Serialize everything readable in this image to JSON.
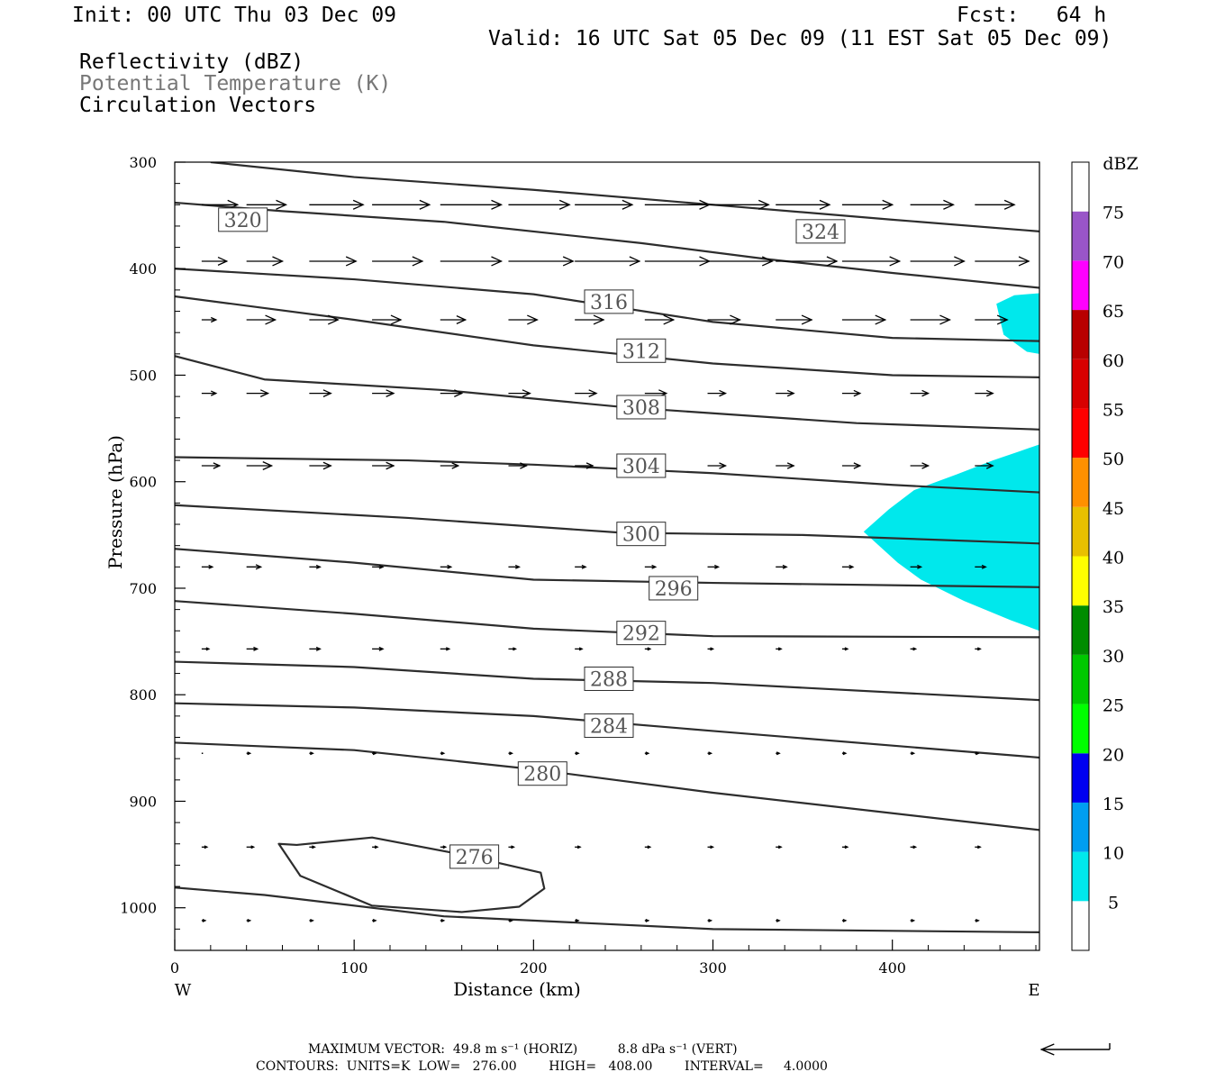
{
  "header": {
    "init": "Init: 00 UTC Thu 03 Dec 09",
    "fcst": "Fcst:   64 h",
    "valid": "Valid: 16 UTC Sat 05 Dec 09 (11 EST Sat 05 Dec 09)",
    "field1": "Reflectivity (dBZ)",
    "field2": "Potential Temperature (K)",
    "field3": "Circulation Vectors"
  },
  "footer": {
    "line1": "MAXIMUM VECTOR:  49.8 m s⁻¹ (HORIZ)          8.8 dPa s⁻¹ (VERT)",
    "line2": "CONTOURS:  UNITS=K  LOW=   276.00        HIGH=   408.00        INTERVAL=     4.0000"
  },
  "chart_data": {
    "type": "contour",
    "title": "",
    "xlabel": "Distance (km)",
    "ylabel": "Pressure (hPa)",
    "xlim": [
      0,
      482
    ],
    "ylim": [
      300,
      1040
    ],
    "y_inverted": true,
    "x_ticks": [
      "0",
      "100",
      "200",
      "300",
      "400"
    ],
    "y_ticks": [
      "300",
      "400",
      "500",
      "600",
      "700",
      "800",
      "900",
      "1000"
    ],
    "x_end_labels": {
      "left": "W",
      "right": "E"
    },
    "colorbar": {
      "unit": "dBZ",
      "labels": [
        "5",
        "10",
        "15",
        "20",
        "25",
        "30",
        "35",
        "40",
        "45",
        "50",
        "55",
        "60",
        "65",
        "70",
        "75"
      ],
      "colors": [
        "#ffffff",
        "#00e8ec",
        "#009ef0",
        "#0000f0",
        "#00ff00",
        "#00c800",
        "#008c00",
        "#ffff00",
        "#e8c000",
        "#ff9000",
        "#ff0000",
        "#d80000",
        "#b80000",
        "#ff00ff",
        "#9955c8",
        "#ffffff"
      ]
    },
    "reflectivity_areas": [
      {
        "dbz": "5-10",
        "color": "#00e8ec",
        "polygon": [
          [
            458,
            433
          ],
          [
            468,
            425
          ],
          [
            482,
            423
          ],
          [
            482,
            480
          ],
          [
            475,
            478
          ],
          [
            462,
            462
          ]
        ]
      },
      {
        "dbz": "5-10",
        "color": "#00e8ec",
        "polygon": [
          [
            384,
            647
          ],
          [
            398,
            626
          ],
          [
            412,
            608
          ],
          [
            436,
            593
          ],
          [
            456,
            580
          ],
          [
            470,
            572
          ],
          [
            482,
            565
          ],
          [
            482,
            740
          ],
          [
            466,
            730
          ],
          [
            440,
            712
          ],
          [
            416,
            692
          ],
          [
            403,
            676
          ]
        ]
      }
    ],
    "theta_contours": [
      {
        "label": "324",
        "label_at": [
          360,
          365
        ],
        "points": [
          [
            20,
            300
          ],
          [
            100,
            314
          ],
          [
            200,
            326
          ],
          [
            300,
            340
          ],
          [
            400,
            354
          ],
          [
            482,
            365
          ]
        ]
      },
      {
        "label": "320",
        "label_at": [
          38,
          354
        ],
        "points": [
          [
            0,
            338
          ],
          [
            60,
            346
          ],
          [
            150,
            356
          ],
          [
            260,
            376
          ],
          [
            330,
            391
          ],
          [
            400,
            404
          ],
          [
            482,
            418
          ]
        ]
      },
      {
        "label": "316",
        "label_at": [
          242,
          431
        ],
        "points": [
          [
            0,
            400
          ],
          [
            100,
            410
          ],
          [
            200,
            424
          ],
          [
            300,
            450
          ],
          [
            400,
            465
          ],
          [
            482,
            468
          ]
        ]
      },
      {
        "label": "312",
        "label_at": [
          260,
          477
        ],
        "points": [
          [
            0,
            426
          ],
          [
            100,
            448
          ],
          [
            200,
            472
          ],
          [
            300,
            489
          ],
          [
            400,
            500
          ],
          [
            482,
            502
          ]
        ]
      },
      {
        "label": "308",
        "label_at": [
          260,
          530
        ],
        "points": [
          [
            0,
            482
          ],
          [
            50,
            504
          ],
          [
            150,
            514
          ],
          [
            250,
            530
          ],
          [
            380,
            545
          ],
          [
            482,
            551
          ]
        ]
      },
      {
        "label": "304",
        "label_at": [
          260,
          585
        ],
        "points": [
          [
            0,
            577
          ],
          [
            130,
            580
          ],
          [
            200,
            584
          ],
          [
            300,
            592
          ],
          [
            400,
            603
          ],
          [
            482,
            610
          ]
        ]
      },
      {
        "label": "300",
        "label_at": [
          260,
          649
        ],
        "points": [
          [
            0,
            622
          ],
          [
            130,
            634
          ],
          [
            250,
            648
          ],
          [
            350,
            650
          ],
          [
            482,
            658
          ]
        ]
      },
      {
        "label": "296",
        "label_at": [
          278,
          700
        ],
        "points": [
          [
            0,
            663
          ],
          [
            100,
            676
          ],
          [
            200,
            692
          ],
          [
            300,
            695
          ],
          [
            482,
            699
          ]
        ]
      },
      {
        "label": "292",
        "label_at": [
          260,
          742
        ],
        "points": [
          [
            0,
            712
          ],
          [
            100,
            724
          ],
          [
            200,
            738
          ],
          [
            300,
            745
          ],
          [
            482,
            746
          ]
        ]
      },
      {
        "label": "288",
        "label_at": [
          242,
          785
        ],
        "points": [
          [
            0,
            769
          ],
          [
            100,
            774
          ],
          [
            200,
            785
          ],
          [
            300,
            789
          ],
          [
            482,
            805
          ]
        ]
      },
      {
        "label": "284",
        "label_at": [
          242,
          829
        ],
        "points": [
          [
            0,
            808
          ],
          [
            100,
            812
          ],
          [
            200,
            820
          ],
          [
            300,
            834
          ],
          [
            482,
            859
          ]
        ]
      },
      {
        "label": "280",
        "label_at": [
          205,
          874
        ],
        "points": [
          [
            0,
            845
          ],
          [
            100,
            852
          ],
          [
            200,
            870
          ],
          [
            300,
            892
          ],
          [
            482,
            927
          ]
        ]
      },
      {
        "label": "276",
        "label_at": [
          167,
          952
        ],
        "closed": true,
        "points": [
          [
            68,
            941
          ],
          [
            110,
            934
          ],
          [
            160,
            950
          ],
          [
            204,
            967
          ],
          [
            206,
            982
          ],
          [
            192,
            999
          ],
          [
            160,
            1004
          ],
          [
            110,
            998
          ],
          [
            70,
            970
          ],
          [
            58,
            940
          ]
        ]
      },
      {
        "label": "",
        "points": [
          [
            0,
            981
          ],
          [
            50,
            988
          ],
          [
            150,
            1008
          ],
          [
            300,
            1020
          ],
          [
            482,
            1023
          ]
        ]
      }
    ],
    "vector_rows": [
      {
        "pressure": 340,
        "x": [
          15,
          40,
          75,
          110,
          148,
          186,
          223,
          262,
          297,
          335,
          372,
          410,
          446
        ],
        "length_km": [
          20,
          22,
          30,
          32,
          34,
          34,
          32,
          36,
          34,
          30,
          28,
          24,
          22
        ]
      },
      {
        "pressure": 393,
        "x": [
          15,
          40,
          75,
          110,
          148,
          186,
          223,
          262,
          297,
          335,
          372,
          410,
          446
        ],
        "length_km": [
          14,
          20,
          26,
          28,
          34,
          36,
          36,
          36,
          36,
          34,
          32,
          30,
          30
        ]
      },
      {
        "pressure": 448,
        "x": [
          15,
          40,
          75,
          110,
          148,
          186,
          223,
          262,
          297,
          335,
          372,
          410,
          446
        ],
        "length_km": [
          8,
          16,
          16,
          16,
          14,
          16,
          16,
          16,
          18,
          20,
          24,
          22,
          18
        ]
      },
      {
        "pressure": 517,
        "x": [
          15,
          40,
          75,
          110,
          148,
          186,
          223,
          262,
          297,
          335,
          372,
          410,
          446
        ],
        "length_km": [
          8,
          12,
          12,
          12,
          12,
          12,
          12,
          12,
          10,
          10,
          10,
          10,
          10
        ]
      },
      {
        "pressure": 585,
        "x": [
          15,
          40,
          75,
          110,
          148,
          186,
          223,
          262,
          297,
          335,
          372,
          410,
          446
        ],
        "length_km": [
          10,
          14,
          12,
          12,
          10,
          10,
          10,
          10,
          10,
          10,
          10,
          10,
          10
        ]
      },
      {
        "pressure": 680,
        "x": [
          15,
          40,
          75,
          110,
          148,
          186,
          223,
          262,
          297,
          335,
          372,
          410,
          446
        ],
        "length_km": [
          6,
          8,
          6,
          6,
          6,
          6,
          6,
          6,
          6,
          6,
          6,
          6,
          6
        ]
      },
      {
        "pressure": 757,
        "x": [
          15,
          40,
          75,
          110,
          148,
          186,
          223,
          262,
          297,
          335,
          372,
          410,
          446
        ],
        "length_km": [
          4,
          6,
          6,
          6,
          5,
          4,
          4,
          3,
          3,
          3,
          3,
          3,
          3
        ]
      },
      {
        "pressure": 855,
        "x": [
          15,
          40,
          75,
          110,
          148,
          186,
          223,
          262,
          297,
          335,
          372,
          410,
          446
        ],
        "length_km": [
          0,
          2,
          2,
          2,
          2,
          2,
          2,
          2,
          2,
          2,
          2,
          2,
          2
        ]
      },
      {
        "pressure": 943,
        "x": [
          15,
          40,
          75,
          110,
          148,
          186,
          223,
          262,
          297,
          335,
          372,
          410,
          446
        ],
        "length_km": [
          3,
          4,
          3,
          3,
          3,
          3,
          3,
          3,
          3,
          3,
          3,
          3,
          3
        ]
      },
      {
        "pressure": 1012,
        "x": [
          15,
          40,
          75,
          110,
          148,
          186,
          223,
          262,
          297,
          335,
          372,
          410,
          446
        ],
        "length_km": [
          2,
          2,
          2,
          2,
          2,
          2,
          2,
          2,
          2,
          2,
          2,
          2,
          2
        ]
      }
    ],
    "reference_vector": {
      "direction": "left",
      "length_km": 38
    }
  },
  "colors": {
    "contour": "#2d2d2d",
    "axis": "#000000",
    "vector": "#000000",
    "grey_text": "#777777"
  }
}
